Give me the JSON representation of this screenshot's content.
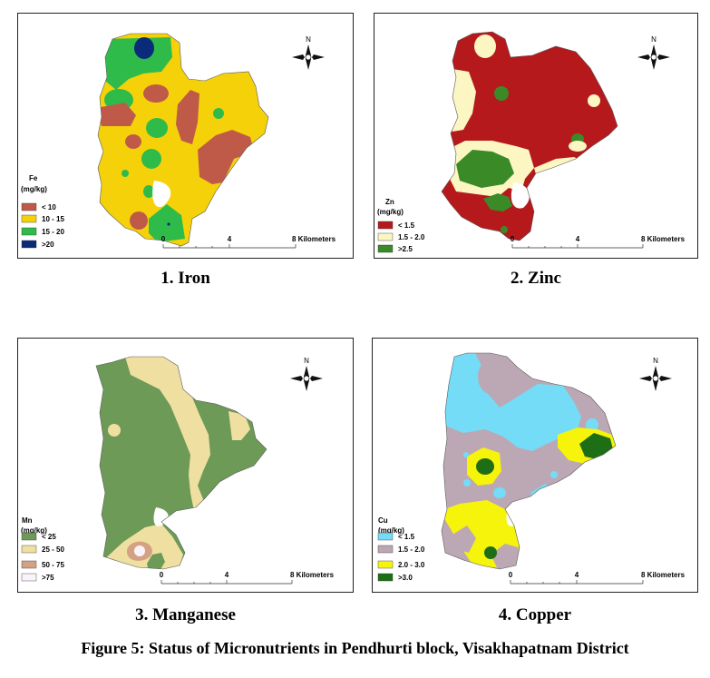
{
  "maps": [
    {
      "id": "iron",
      "caption": "1. Iron",
      "legend_title": "Fe",
      "legend_unit": "(mg/kg)",
      "classes": [
        {
          "label": "< 10",
          "color": "#c05a48"
        },
        {
          "label": "10 - 15",
          "color": "#f5d10a"
        },
        {
          "label": "15 - 20",
          "color": "#2fbb4a"
        },
        {
          "label": ">20",
          "color": "#0a2a7a"
        }
      ]
    },
    {
      "id": "zinc",
      "caption": "2. Zinc",
      "legend_title": "Zn",
      "legend_unit": "(mg/kg)",
      "classes": [
        {
          "label": "< 1.5",
          "color": "#b5191b"
        },
        {
          "label": "1.5 - 2.0",
          "color": "#fbf6c2"
        },
        {
          "label": ">2.5",
          "color": "#3a8a28"
        }
      ]
    },
    {
      "id": "manganese",
      "caption": "3. Manganese",
      "legend_title": "Mn",
      "legend_unit": "(mg/kg)",
      "classes": [
        {
          "label": "< 25",
          "color": "#6d9a57"
        },
        {
          "label": "25 - 50",
          "color": "#efe0a2"
        },
        {
          "label": "50 - 75",
          "color": "#d4a283"
        },
        {
          "label": ">75",
          "color": "#fbf3fb"
        }
      ]
    },
    {
      "id": "copper",
      "caption": "4. Copper",
      "legend_title": "Cu",
      "legend_unit": "(mg/kg)",
      "classes": [
        {
          "label": "< 1.5",
          "color": "#74dcf7"
        },
        {
          "label": "1.5 - 2.0",
          "color": "#bca8b4"
        },
        {
          "label": "2.0 - 3.0",
          "color": "#f6f40a"
        },
        {
          "label": ">3.0",
          "color": "#1e6e15"
        }
      ]
    }
  ],
  "north_label": "N",
  "scale_labels": [
    "0",
    "4",
    "8 Kilometers"
  ],
  "figure_caption": "Figure 5: Status of Micronutrients in Pendhurti block, Visakhapatnam District",
  "colors": {
    "boundary": "#5a5a5a",
    "frame": "#222222"
  }
}
